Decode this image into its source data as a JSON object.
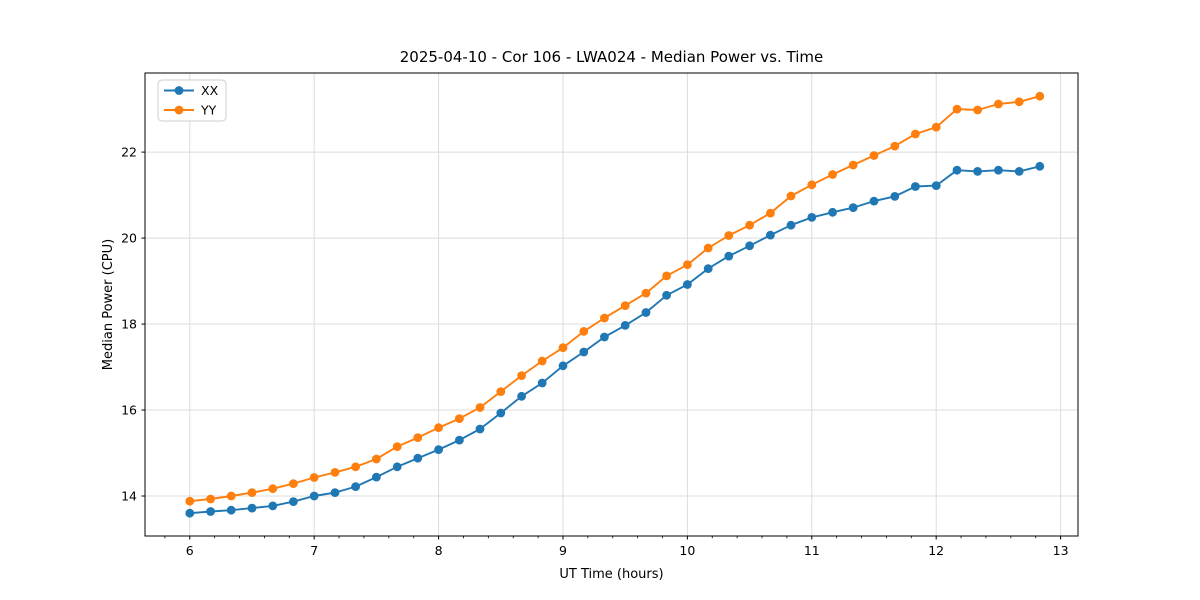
{
  "chart_data": {
    "type": "line",
    "title": "2025-04-10 - Cor 106 - LWA024 - Median Power vs. Time",
    "xlabel": "UT Time (hours)",
    "ylabel": "Median Power (CPU)",
    "xlim": [
      5.64,
      13.14
    ],
    "ylim": [
      13.07,
      23.84
    ],
    "xticks": [
      6,
      7,
      8,
      9,
      10,
      11,
      12,
      13
    ],
    "yticks": [
      14,
      16,
      18,
      20,
      22
    ],
    "minor_xtick_step": 0.2,
    "grid": true,
    "legend_location": "upper left",
    "x": [
      6.0,
      6.167,
      6.333,
      6.5,
      6.667,
      6.833,
      7.0,
      7.167,
      7.333,
      7.5,
      7.667,
      7.833,
      8.0,
      8.167,
      8.333,
      8.5,
      8.667,
      8.833,
      9.0,
      9.167,
      9.333,
      9.5,
      9.667,
      9.833,
      10.0,
      10.167,
      10.333,
      10.5,
      10.667,
      10.833,
      11.0,
      11.167,
      11.333,
      11.5,
      11.667,
      11.833,
      12.0,
      12.167,
      12.333,
      12.5,
      12.667,
      12.833
    ],
    "series": [
      {
        "name": "XX",
        "color": "#1f77b4",
        "values": [
          13.6,
          13.64,
          13.67,
          13.72,
          13.77,
          13.87,
          14.0,
          14.08,
          14.22,
          14.44,
          14.68,
          14.88,
          15.08,
          15.3,
          15.56,
          15.93,
          16.32,
          16.63,
          17.03,
          17.35,
          17.7,
          17.97,
          18.27,
          18.67,
          18.92,
          19.29,
          19.58,
          19.82,
          20.07,
          20.3,
          20.48,
          20.6,
          20.71,
          20.86,
          20.97,
          21.2,
          21.22,
          21.58,
          21.55,
          21.58,
          21.55,
          21.67
        ]
      },
      {
        "name": "YY",
        "color": "#ff7f0e",
        "values": [
          13.88,
          13.93,
          14.0,
          14.08,
          14.17,
          14.29,
          14.43,
          14.55,
          14.68,
          14.86,
          15.15,
          15.36,
          15.59,
          15.8,
          16.06,
          16.43,
          16.8,
          17.14,
          17.45,
          17.83,
          18.14,
          18.43,
          18.72,
          19.12,
          19.38,
          19.77,
          20.06,
          20.3,
          20.58,
          20.98,
          21.24,
          21.48,
          21.7,
          21.92,
          22.14,
          22.42,
          22.58,
          23.0,
          22.98,
          23.12,
          23.17,
          23.3
        ]
      }
    ]
  }
}
